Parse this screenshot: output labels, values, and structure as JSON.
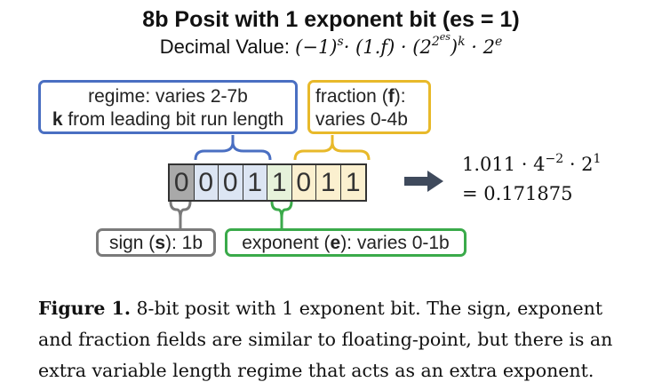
{
  "title": "8b Posit with 1 exponent bit (es = 1)",
  "formula": {
    "prefix": "Decimal Value:",
    "t1": "(−1)",
    "t1_exp": "s",
    "t2": "· (1.",
    "t2_f": "f",
    "t2_close": ") · (2",
    "t3_exp": "2",
    "t3_exp2": "es",
    "t3_close": ")",
    "t3_k": "k",
    "t4": " · 2",
    "t4_exp": "e"
  },
  "regime_box": {
    "line1": "regime: varies 2-7b",
    "line2_bold": "k",
    "line2_rest": " from leading bit run length"
  },
  "fraction_box": {
    "line1_pre": "fraction (",
    "line1_bold": "f",
    "line1_post": "):",
    "line2": "varies 0-4b"
  },
  "bits": [
    {
      "value": "0",
      "field": "sign"
    },
    {
      "value": "0",
      "field": "regime"
    },
    {
      "value": "0",
      "field": "regime"
    },
    {
      "value": "1",
      "field": "regime"
    },
    {
      "value": "1",
      "field": "exponent"
    },
    {
      "value": "0",
      "field": "fraction"
    },
    {
      "value": "1",
      "field": "fraction"
    },
    {
      "value": "1",
      "field": "fraction"
    }
  ],
  "result": {
    "line1_pre": "1.011 · 4",
    "line1_exp": "−2",
    "line1_mid": " · 2",
    "line1_exp2": "1",
    "line2": "= 0.171875"
  },
  "sign_box": {
    "pre": "sign (",
    "bold": "s",
    "post": "): 1b"
  },
  "exponent_box": {
    "pre": "exponent (",
    "bold": "e",
    "post": "): varies 0-1b"
  },
  "caption": {
    "label": "Figure 1.",
    "line1_rest": " 8-bit posit with 1 exponent bit. The sign, exponent",
    "line2": "and fraction fields are similar to floating-point, but there is an",
    "line3": "extra variable length regime that acts as an extra exponent."
  },
  "colors": {
    "regime": "#4a6fc2",
    "fraction": "#e8b92a",
    "sign": "#7a7a7a",
    "exponent": "#3aaa4a",
    "arrow": "#3f4a5c"
  }
}
